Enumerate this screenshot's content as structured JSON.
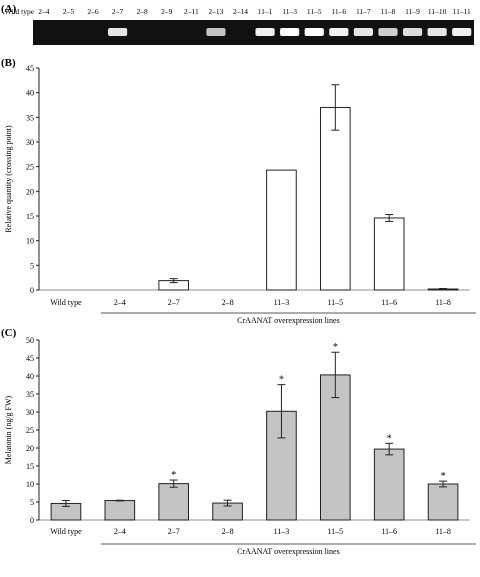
{
  "panels": {
    "a": {
      "letter": "(A)"
    },
    "b": {
      "letter": "(B)"
    },
    "c": {
      "letter": "(C)"
    }
  },
  "gel": {
    "background": "#111111",
    "lanes": [
      {
        "label": "Wild type",
        "band": 0
      },
      {
        "label": "2–4",
        "band": 0
      },
      {
        "label": "2–5",
        "band": 0
      },
      {
        "label": "2–6",
        "band": 0
      },
      {
        "label": "2–7",
        "band": 0.9
      },
      {
        "label": "2–8",
        "band": 0
      },
      {
        "label": "2–9",
        "band": 0
      },
      {
        "label": "2–11",
        "band": 0
      },
      {
        "label": "2–13",
        "band": 0.75
      },
      {
        "label": "2–14",
        "band": 0
      },
      {
        "label": "11–1",
        "band": 0.95
      },
      {
        "label": "11–3",
        "band": 1.0
      },
      {
        "label": "11–5",
        "band": 1.0
      },
      {
        "label": "11–6",
        "band": 0.95
      },
      {
        "label": "11–7",
        "band": 0.9
      },
      {
        "label": "11–8",
        "band": 0.8
      },
      {
        "label": "11–9",
        "band": 0.85
      },
      {
        "label": "11–10",
        "band": 0.9
      },
      {
        "label": "11–11",
        "band": 0.95
      }
    ]
  },
  "chart_data": [
    {
      "type": "bar",
      "panel": "B",
      "categories": [
        "Wild type",
        "2–4",
        "2–7",
        "2–8",
        "11–3",
        "11–5",
        "11–6",
        "11–8"
      ],
      "values": [
        0,
        0,
        1.9,
        0,
        24.3,
        37.0,
        14.6,
        0.2
      ],
      "errors": [
        0,
        0,
        0.4,
        0,
        0,
        4.6,
        0.7,
        0.1
      ],
      "ylabel": "Relative quantity (crossing point)",
      "group_label": "CrAANAT overexpression lines",
      "ylim": [
        0,
        45
      ],
      "yticks": [
        0,
        5,
        10,
        15,
        20,
        25,
        30,
        35,
        40,
        45
      ],
      "bar_color": "#ffffff",
      "grid": false
    },
    {
      "type": "bar",
      "panel": "C",
      "categories": [
        "Wild type",
        "2–4",
        "2–7",
        "2–8",
        "11–3",
        "11–5",
        "11–6",
        "11–8"
      ],
      "values": [
        4.6,
        5.4,
        10.1,
        4.7,
        30.2,
        40.3,
        19.7,
        10.0
      ],
      "errors": [
        0.8,
        0.1,
        1.0,
        0.8,
        7.4,
        6.3,
        1.6,
        0.8
      ],
      "significant": [
        false,
        false,
        true,
        false,
        true,
        true,
        true,
        true
      ],
      "significance_marker": "*",
      "ylabel": "Melatonin (ng/g FW)",
      "group_label": "CrAANAT overexpression lines",
      "ylim": [
        0,
        50
      ],
      "yticks": [
        0,
        5,
        10,
        15,
        20,
        25,
        30,
        35,
        40,
        45,
        50
      ],
      "bar_color": "#c4c4c4",
      "grid": false
    }
  ]
}
